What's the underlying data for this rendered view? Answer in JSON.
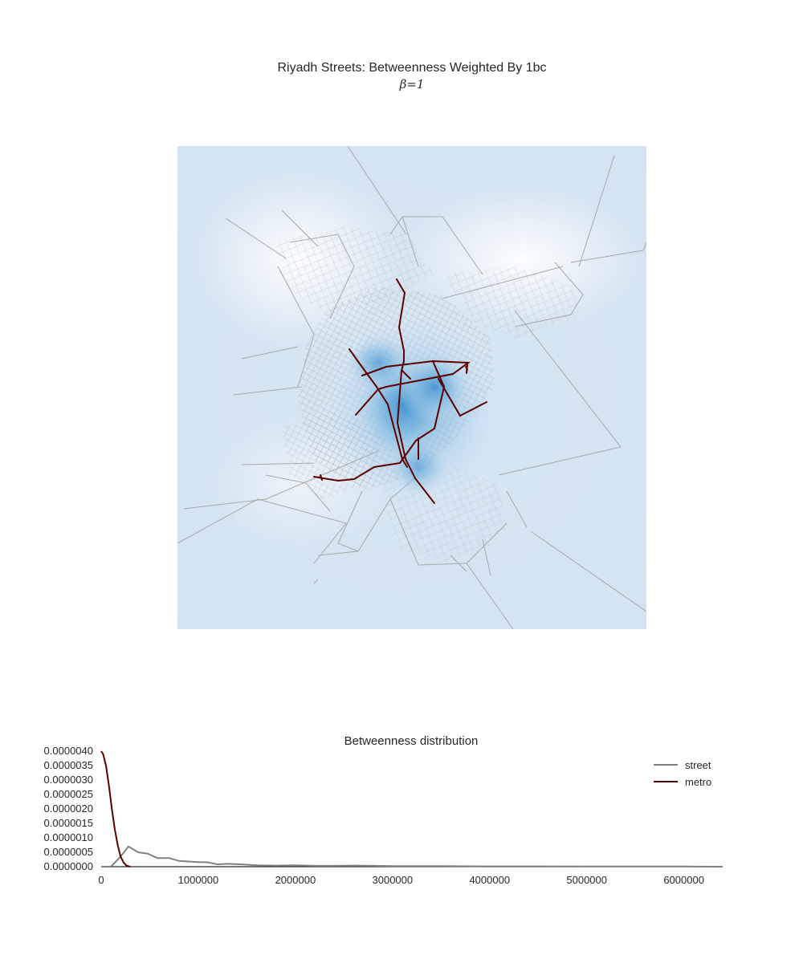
{
  "map": {
    "title": "Riyadh Streets: Betweenness Weighted By 1bc",
    "subtitle": "β=1"
  },
  "chart_data": {
    "type": "line",
    "title": "Betweenness distribution",
    "xlabel": "",
    "ylabel": "",
    "xlim": [
      0,
      6400000
    ],
    "ylim": [
      0,
      4e-06
    ],
    "x_ticks": [
      "0",
      "1000000",
      "2000000",
      "3000000",
      "4000000",
      "5000000",
      "6000000"
    ],
    "y_ticks": [
      "0.0000000",
      "0.0000005",
      "0.0000010",
      "0.0000015",
      "0.0000020",
      "0.0000025",
      "0.0000030",
      "0.0000035",
      "0.0000040"
    ],
    "grid": false,
    "legend_position": "top-right",
    "series": [
      {
        "name": "street",
        "color": "#808080",
        "x": [
          0,
          100000,
          200000,
          280000,
          380000,
          480000,
          580000,
          700000,
          800000,
          900000,
          1000000,
          1100000,
          1200000,
          1300000,
          1450000,
          1600000,
          1800000,
          2000000,
          2200000,
          2400000,
          2600000,
          2800000,
          3000000,
          3200000,
          3500000,
          4000000,
          4500000,
          5000000,
          6000000,
          6400000
        ],
        "y": [
          0,
          0,
          3.5e-07,
          7e-07,
          5e-07,
          4.5e-07,
          3e-07,
          3e-07,
          2e-07,
          1.8e-07,
          1.6e-07,
          1.5e-07,
          8e-08,
          1e-07,
          8e-08,
          5e-08,
          4e-08,
          5e-08,
          3e-08,
          3e-08,
          4e-08,
          3e-08,
          2e-08,
          2e-08,
          2e-08,
          1e-08,
          1e-08,
          5e-09,
          5e-09,
          0
        ]
      },
      {
        "name": "metro",
        "color": "#5c0000",
        "x": [
          0,
          20000,
          50000,
          80000,
          110000,
          140000,
          170000,
          200000,
          230000,
          260000,
          300000
        ],
        "y": [
          4e-06,
          3.9e-06,
          3.5e-06,
          2.8e-06,
          2e-06,
          1.3e-06,
          7.5e-07,
          3.5e-07,
          1.5e-07,
          4e-08,
          0
        ]
      }
    ]
  }
}
